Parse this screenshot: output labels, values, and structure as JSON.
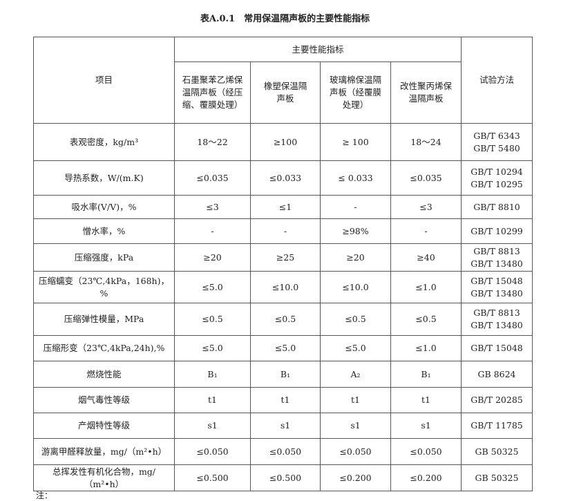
{
  "title": "表A.0.1　常用保温隔声板的主要性能指标",
  "header": {
    "item": "项目",
    "main": "主要性能指标",
    "method": "试验方法",
    "materials": [
      "石墨聚苯乙烯保温隔声板（经压缩、覆膜处理）",
      "橡塑保温隔声板",
      "玻璃棉保温隔声板（经覆膜处理）",
      "改性聚丙烯保温隔声板"
    ]
  },
  "rows": [
    {
      "item": "表观密度，kg/m³",
      "values": [
        "18～22",
        "≥100",
        "≥ 100",
        "18～24"
      ],
      "method": "GB/T 6343\nGB/T 5480"
    },
    {
      "item": "导热系数，W/(m.K)",
      "values": [
        "≤0.035",
        "≤0.033",
        "≤ 0.033",
        "≤0.035"
      ],
      "method": "GB/T 10294\nGB/T 10295"
    },
    {
      "item": "吸水率(V/V)，%",
      "values": [
        "≤3",
        "≤1",
        "-",
        "≤3"
      ],
      "method": "GB/T 8810"
    },
    {
      "item": "憎水率，%",
      "values": [
        "-",
        "-",
        "≥98%",
        "-"
      ],
      "method": "GB/T 10299"
    },
    {
      "item": "压缩强度，kPa",
      "values": [
        "≥20",
        "≥25",
        "≥20",
        "≥40"
      ],
      "method": "GB/T 8813\nGB/T 13480"
    },
    {
      "item": "压缩蠕变（23℃,4kPa，168h)，%",
      "values": [
        "≤5.0",
        "≤10.0",
        "≤10.0",
        "≤1.0"
      ],
      "method": "GB/T 15048\nGB/T 13480"
    },
    {
      "item": "压缩弹性模量，MPa",
      "values": [
        "≤0.5",
        "≤0.5",
        "≤0.5",
        "≤0.5"
      ],
      "method": "GB/T 8813\nGB/T 13480"
    },
    {
      "item": "压缩形变（23℃,4kPa,24h),%",
      "values": [
        "≤5.0",
        "≤5.0",
        "≤5.0",
        "≤1.0"
      ],
      "method": "GB/T 15048"
    },
    {
      "item": "燃烧性能",
      "values": [
        "B₁",
        "B₁",
        "A₂",
        "B₁"
      ],
      "method": "GB 8624"
    },
    {
      "item": "烟气毒性等级",
      "values": [
        "t1",
        "t1",
        "t1",
        "t1"
      ],
      "method": "GB/T 20285"
    },
    {
      "item": "产烟特性等级",
      "values": [
        "s1",
        "s1",
        "s1",
        "s1"
      ],
      "method": "GB/T 11785"
    },
    {
      "item": "游离甲醛释放量，mg/（m²•h）",
      "values": [
        "≤0.050",
        "≤0.050",
        "≤0.050",
        "≤0.050"
      ],
      "method": "GB 50325"
    },
    {
      "item": "总挥发性有机化合物，mg/（m²•h）",
      "values": [
        "≤0.500",
        "≤0.500",
        "≤0.200",
        "≤0.200"
      ],
      "method": "GB 50325"
    }
  ],
  "note": "注："
}
